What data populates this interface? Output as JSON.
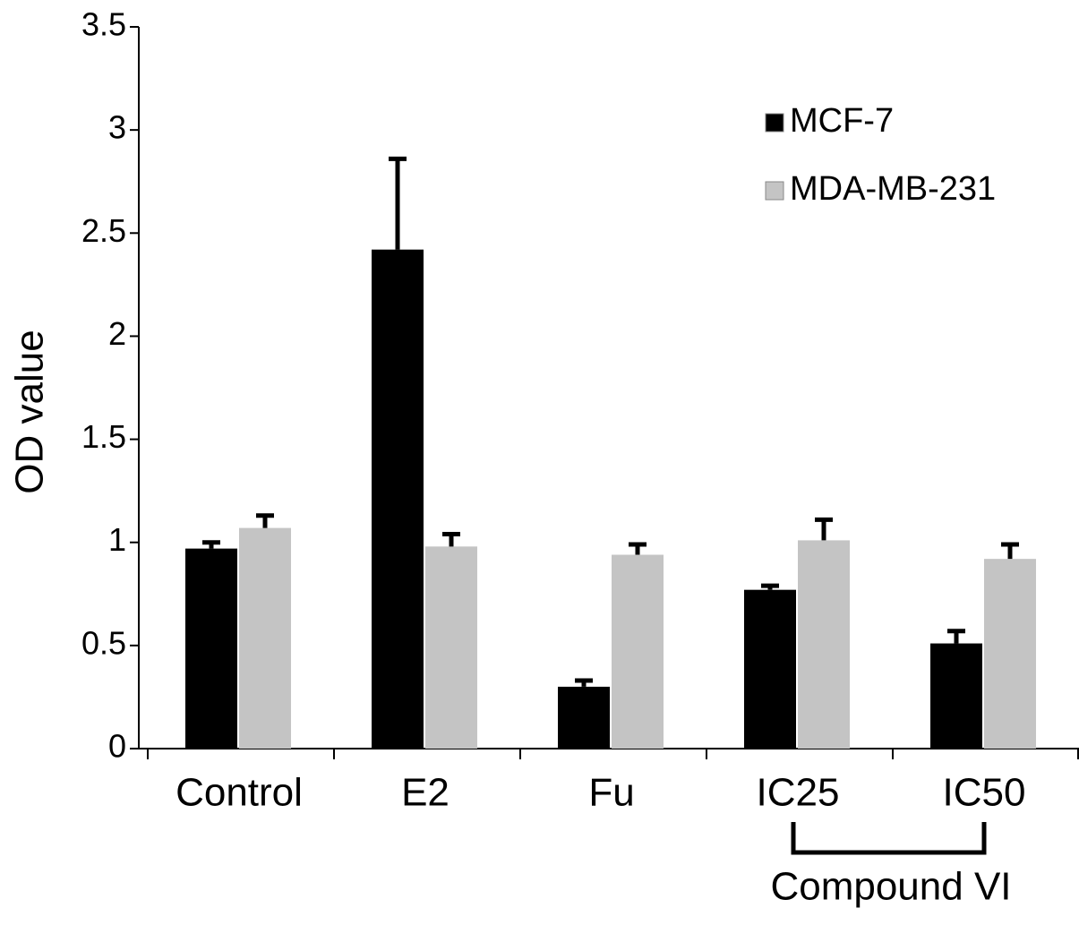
{
  "chart_data": {
    "type": "bar",
    "y_label": "OD value",
    "categories": [
      "Control",
      "E2",
      "Fu",
      "IC25",
      "IC50"
    ],
    "series": [
      {
        "name": "MCF-7",
        "color": "#000000",
        "values": [
          0.97,
          2.42,
          0.3,
          0.77,
          0.51
        ],
        "errors": [
          0.03,
          0.44,
          0.03,
          0.02,
          0.06
        ]
      },
      {
        "name": "MDA-MB-231",
        "color": "#c4c4c4",
        "values": [
          1.07,
          0.98,
          0.94,
          1.01,
          0.92
        ],
        "errors": [
          0.06,
          0.06,
          0.05,
          0.1,
          0.07
        ]
      }
    ],
    "ylim": [
      0,
      3.5
    ],
    "yticks": [
      0,
      0.5,
      1,
      1.5,
      2,
      2.5,
      3,
      3.5
    ],
    "legend": "top-right",
    "group_label": "Compound VI"
  }
}
